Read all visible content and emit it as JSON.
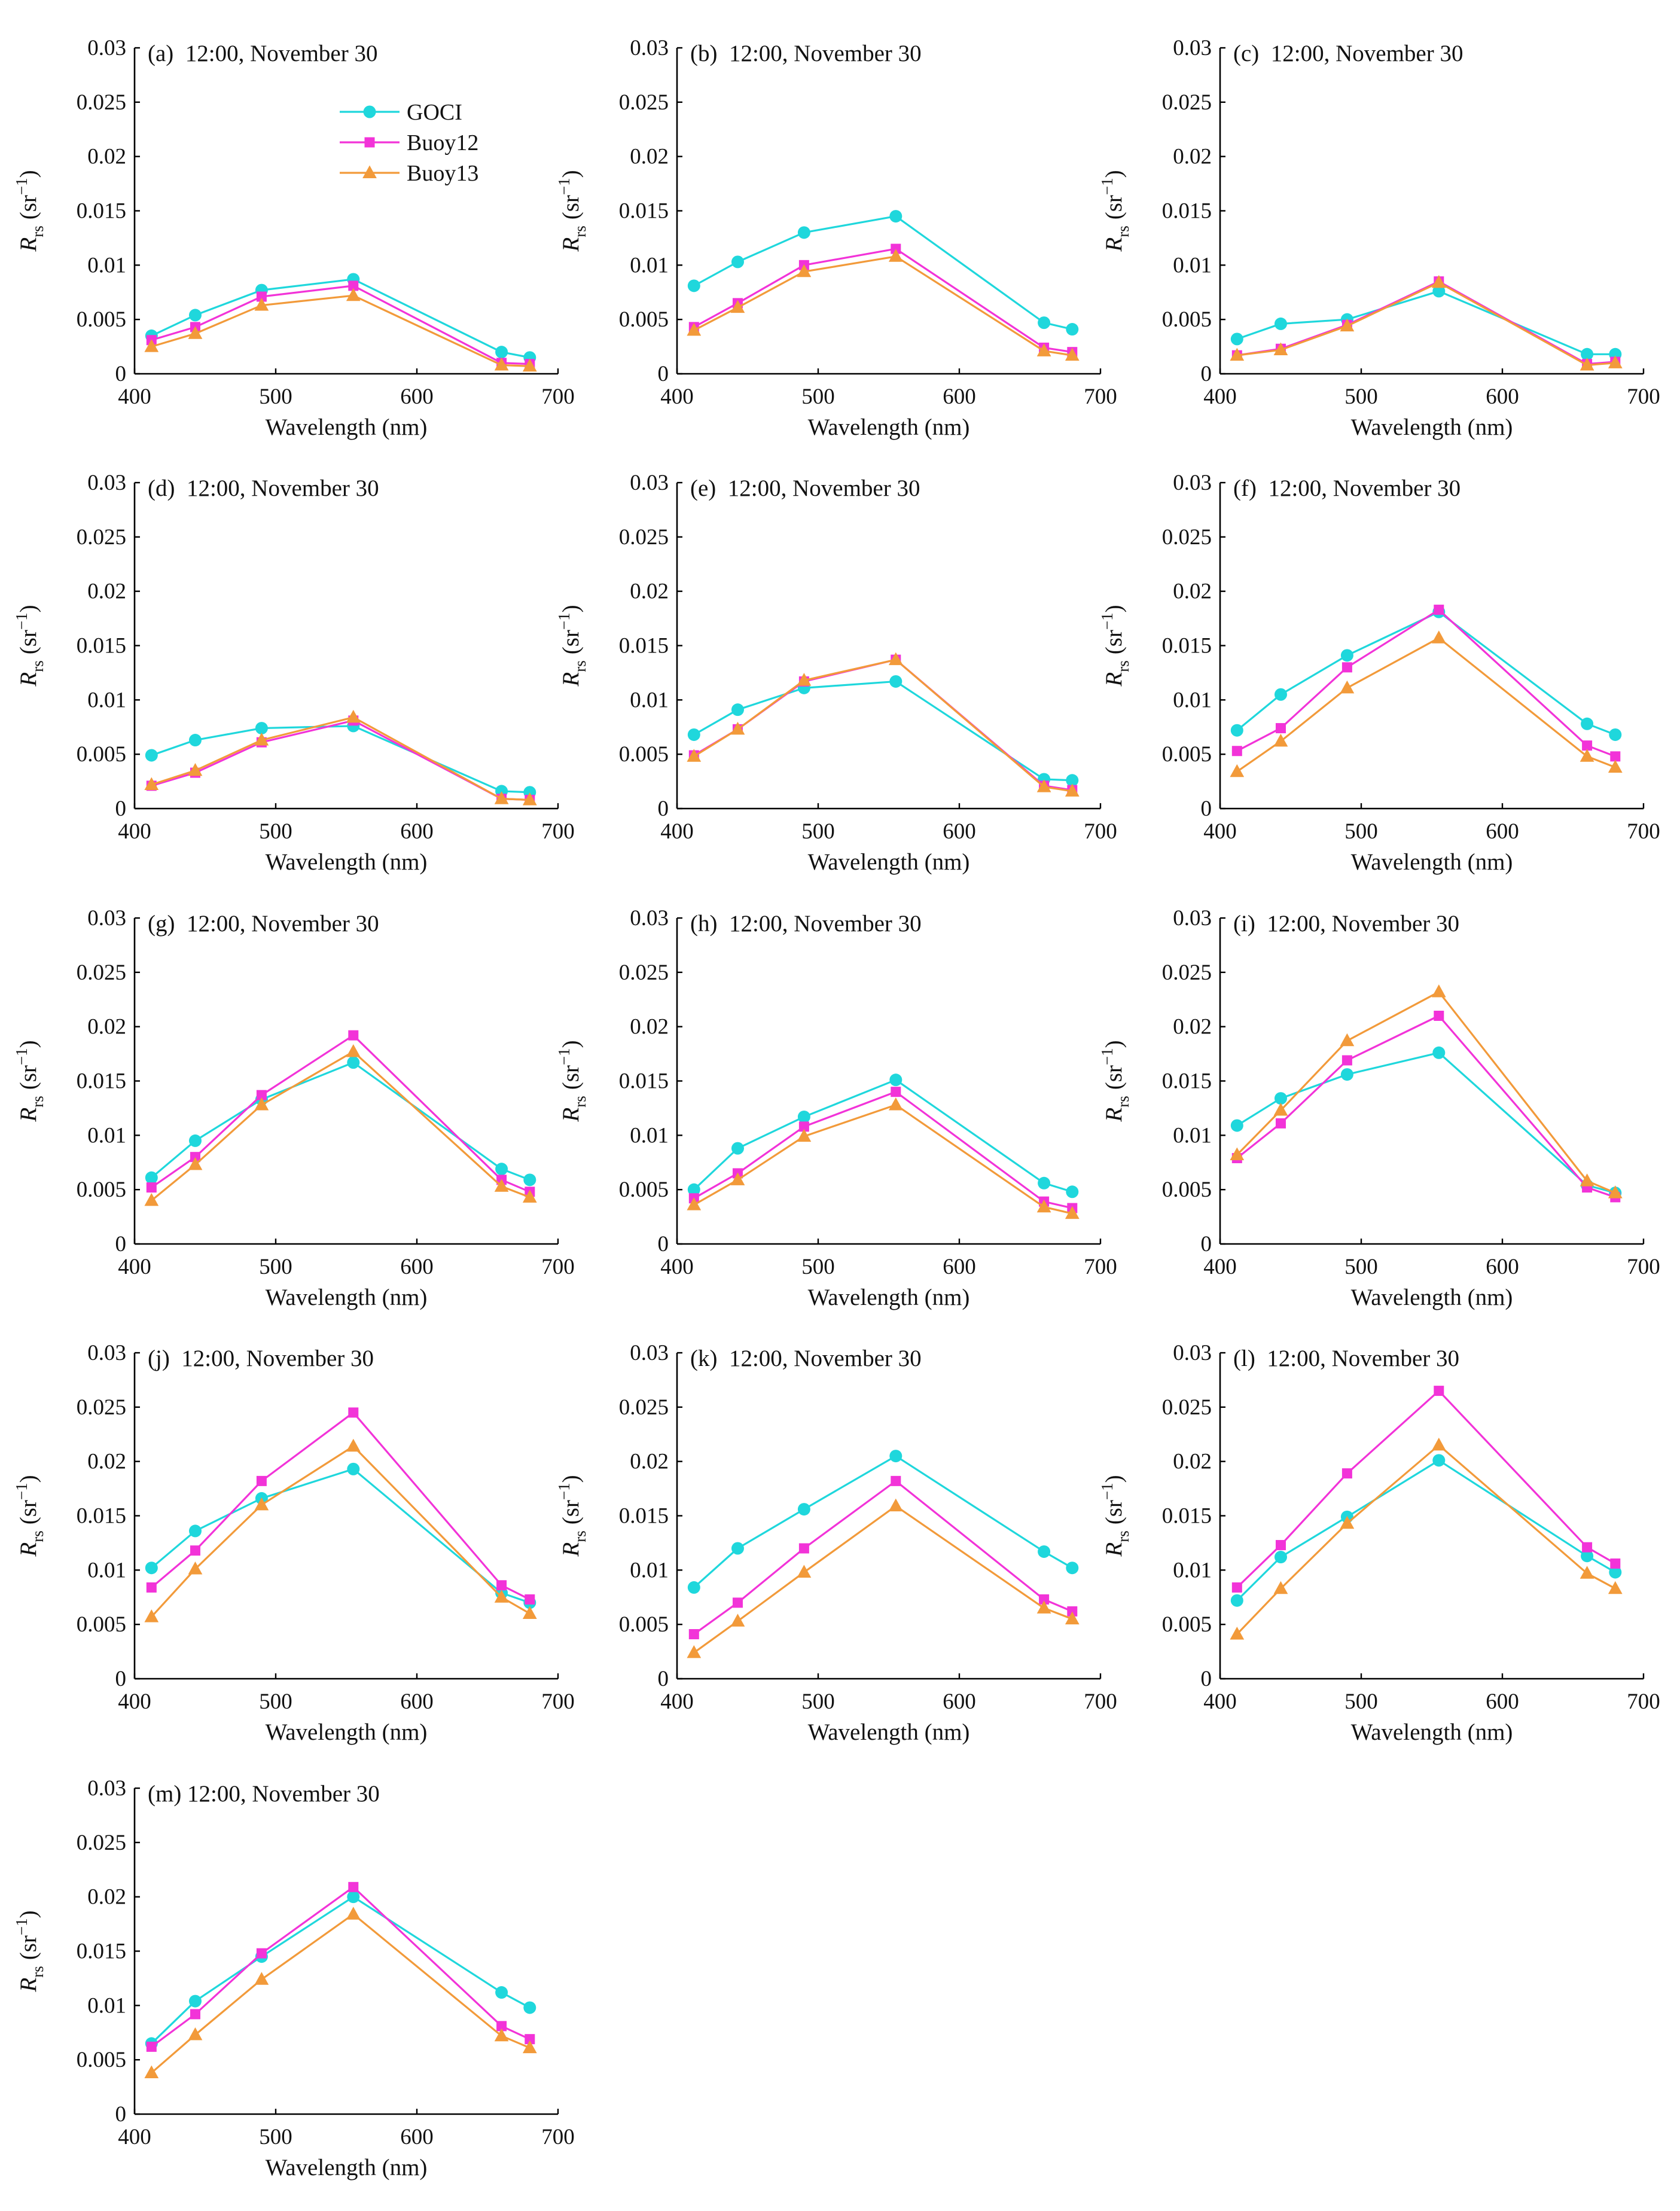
{
  "figure": {
    "xlabel": "Wavelength (nm)",
    "ylabel_main": "R",
    "ylabel_sub": "rs",
    "ylabel_unit_open": "(sr",
    "ylabel_unit_exp": "−1",
    "ylabel_unit_close": ")"
  },
  "series_meta": [
    {
      "name": "GOCI",
      "color": "#1fd7dc",
      "marker": "circle"
    },
    {
      "name": "Buoy12",
      "color": "#f233d8",
      "marker": "square"
    },
    {
      "name": "Buoy13",
      "color": "#f29a3a",
      "marker": "triangle"
    }
  ],
  "chart_data": [
    {
      "type": "line",
      "title": "(a)  12:00, November 30",
      "xlabel": "Wavelength (nm)",
      "ylabel": "Rrs (sr−1)",
      "x": [
        412,
        443,
        490,
        555,
        660,
        680
      ],
      "xlim": [
        400,
        700
      ],
      "ylim": [
        0,
        0.03
      ],
      "xticks": [
        "400",
        "500",
        "600",
        "700"
      ],
      "yticks": [
        "0",
        "0.005",
        "0.01",
        "0.015",
        "0.02",
        "0.025",
        "0.03"
      ],
      "legend": [
        "GOCI",
        "Buoy12",
        "Buoy13"
      ],
      "series": [
        {
          "name": "GOCI",
          "values": [
            0.0035,
            0.0054,
            0.0077,
            0.0087,
            0.002,
            0.0015
          ]
        },
        {
          "name": "Buoy12",
          "values": [
            0.0031,
            0.0043,
            0.0071,
            0.0081,
            0.001,
            0.0009
          ]
        },
        {
          "name": "Buoy13",
          "values": [
            0.0025,
            0.0037,
            0.0063,
            0.0072,
            0.0008,
            0.0007
          ]
        }
      ]
    },
    {
      "type": "line",
      "title": "(b)  12:00, November 30",
      "xlabel": "Wavelength (nm)",
      "ylabel": "Rrs (sr−1)",
      "x": [
        412,
        443,
        490,
        555,
        660,
        680
      ],
      "xlim": [
        400,
        700
      ],
      "ylim": [
        0,
        0.03
      ],
      "xticks": [
        "400",
        "500",
        "600",
        "700"
      ],
      "yticks": [
        "0",
        "0.005",
        "0.01",
        "0.015",
        "0.02",
        "0.025",
        "0.03"
      ],
      "series": [
        {
          "name": "GOCI",
          "values": [
            0.0081,
            0.0103,
            0.013,
            0.0145,
            0.0047,
            0.0041
          ]
        },
        {
          "name": "Buoy12",
          "values": [
            0.0043,
            0.0065,
            0.01,
            0.0115,
            0.0024,
            0.002
          ]
        },
        {
          "name": "Buoy13",
          "values": [
            0.004,
            0.0061,
            0.0094,
            0.0108,
            0.0021,
            0.0017
          ]
        }
      ]
    },
    {
      "type": "line",
      "title": "(c)  12:00, November 30",
      "xlabel": "Wavelength (nm)",
      "ylabel": "Rrs (sr−1)",
      "x": [
        412,
        443,
        490,
        555,
        660,
        680
      ],
      "xlim": [
        400,
        700
      ],
      "ylim": [
        0,
        0.03
      ],
      "xticks": [
        "400",
        "500",
        "600",
        "700"
      ],
      "yticks": [
        "0",
        "0.005",
        "0.01",
        "0.015",
        "0.02",
        "0.025",
        "0.03"
      ],
      "series": [
        {
          "name": "GOCI",
          "values": [
            0.0032,
            0.0046,
            0.005,
            0.0076,
            0.0018,
            0.0018
          ]
        },
        {
          "name": "Buoy12",
          "values": [
            0.0017,
            0.0023,
            0.0045,
            0.0085,
            0.0009,
            0.0011
          ]
        },
        {
          "name": "Buoy13",
          "values": [
            0.0017,
            0.0022,
            0.0044,
            0.0084,
            0.0008,
            0.001
          ]
        }
      ]
    },
    {
      "type": "line",
      "title": "(d)  12:00, November 30",
      "xlabel": "Wavelength (nm)",
      "ylabel": "Rrs (sr−1)",
      "x": [
        412,
        443,
        490,
        555,
        660,
        680
      ],
      "xlim": [
        400,
        700
      ],
      "ylim": [
        0,
        0.03
      ],
      "xticks": [
        "400",
        "500",
        "600",
        "700"
      ],
      "yticks": [
        "0",
        "0.005",
        "0.01",
        "0.015",
        "0.02",
        "0.025",
        "0.03"
      ],
      "series": [
        {
          "name": "GOCI",
          "values": [
            0.0049,
            0.0063,
            0.0074,
            0.0076,
            0.0016,
            0.0015
          ]
        },
        {
          "name": "Buoy12",
          "values": [
            0.0021,
            0.0033,
            0.0061,
            0.0081,
            0.0009,
            0.0008
          ]
        },
        {
          "name": "Buoy13",
          "values": [
            0.0022,
            0.0035,
            0.0063,
            0.0084,
            0.0009,
            0.0008
          ]
        }
      ]
    },
    {
      "type": "line",
      "title": "(e)  12:00, November 30",
      "xlabel": "Wavelength (nm)",
      "ylabel": "Rrs (sr−1)",
      "x": [
        412,
        443,
        490,
        555,
        660,
        680
      ],
      "xlim": [
        400,
        700
      ],
      "ylim": [
        0,
        0.03
      ],
      "xticks": [
        "400",
        "500",
        "600",
        "700"
      ],
      "yticks": [
        "0",
        "0.005",
        "0.01",
        "0.015",
        "0.02",
        "0.025",
        "0.03"
      ],
      "series": [
        {
          "name": "GOCI",
          "values": [
            0.0068,
            0.0091,
            0.0111,
            0.0117,
            0.0027,
            0.0026
          ]
        },
        {
          "name": "Buoy12",
          "values": [
            0.0049,
            0.0073,
            0.0117,
            0.0137,
            0.0021,
            0.0017
          ]
        },
        {
          "name": "Buoy13",
          "values": [
            0.0048,
            0.0073,
            0.0118,
            0.0137,
            0.002,
            0.0016
          ]
        }
      ]
    },
    {
      "type": "line",
      "title": "(f)  12:00, November 30",
      "xlabel": "Wavelength (nm)",
      "ylabel": "Rrs (sr−1)",
      "x": [
        412,
        443,
        490,
        555,
        660,
        680
      ],
      "xlim": [
        400,
        700
      ],
      "ylim": [
        0,
        0.03
      ],
      "xticks": [
        "400",
        "500",
        "600",
        "700"
      ],
      "yticks": [
        "0",
        "0.005",
        "0.01",
        "0.015",
        "0.02",
        "0.025",
        "0.03"
      ],
      "series": [
        {
          "name": "GOCI",
          "values": [
            0.0072,
            0.0105,
            0.0141,
            0.0181,
            0.0078,
            0.0068
          ]
        },
        {
          "name": "Buoy12",
          "values": [
            0.0053,
            0.0074,
            0.013,
            0.0183,
            0.0058,
            0.0048
          ]
        },
        {
          "name": "Buoy13",
          "values": [
            0.0034,
            0.0062,
            0.0111,
            0.0157,
            0.0048,
            0.0038
          ]
        }
      ]
    },
    {
      "type": "line",
      "title": "(g)  12:00, November 30",
      "xlabel": "Wavelength (nm)",
      "ylabel": "Rrs (sr−1)",
      "x": [
        412,
        443,
        490,
        555,
        660,
        680
      ],
      "xlim": [
        400,
        700
      ],
      "ylim": [
        0,
        0.03
      ],
      "xticks": [
        "400",
        "500",
        "600",
        "700"
      ],
      "yticks": [
        "0",
        "0.005",
        "0.01",
        "0.015",
        "0.02",
        "0.025",
        "0.03"
      ],
      "series": [
        {
          "name": "GOCI",
          "values": [
            0.0061,
            0.0095,
            0.0133,
            0.0167,
            0.0069,
            0.0059
          ]
        },
        {
          "name": "Buoy12",
          "values": [
            0.0052,
            0.008,
            0.0137,
            0.0192,
            0.0059,
            0.0048
          ]
        },
        {
          "name": "Buoy13",
          "values": [
            0.004,
            0.0073,
            0.0128,
            0.0177,
            0.0053,
            0.0043
          ]
        }
      ]
    },
    {
      "type": "line",
      "title": "(h)  12:00, November 30",
      "xlabel": "Wavelength (nm)",
      "ylabel": "Rrs (sr−1)",
      "x": [
        412,
        443,
        490,
        555,
        660,
        680
      ],
      "xlim": [
        400,
        700
      ],
      "ylim": [
        0,
        0.03
      ],
      "xticks": [
        "400",
        "500",
        "600",
        "700"
      ],
      "yticks": [
        "0",
        "0.005",
        "0.01",
        "0.015",
        "0.02",
        "0.025",
        "0.03"
      ],
      "series": [
        {
          "name": "GOCI",
          "values": [
            0.005,
            0.0088,
            0.0117,
            0.0151,
            0.0056,
            0.0048
          ]
        },
        {
          "name": "Buoy12",
          "values": [
            0.0042,
            0.0065,
            0.0108,
            0.014,
            0.0039,
            0.0033
          ]
        },
        {
          "name": "Buoy13",
          "values": [
            0.0036,
            0.0059,
            0.0099,
            0.0128,
            0.0034,
            0.0028
          ]
        }
      ]
    },
    {
      "type": "line",
      "title": "(i)  12:00, November 30",
      "xlabel": "Wavelength (nm)",
      "ylabel": "Rrs (sr−1)",
      "x": [
        412,
        443,
        490,
        555,
        660,
        680
      ],
      "xlim": [
        400,
        700
      ],
      "ylim": [
        0,
        0.03
      ],
      "xticks": [
        "400",
        "500",
        "600",
        "700"
      ],
      "yticks": [
        "0",
        "0.005",
        "0.01",
        "0.015",
        "0.02",
        "0.025",
        "0.03"
      ],
      "series": [
        {
          "name": "GOCI",
          "values": [
            0.0109,
            0.0134,
            0.0156,
            0.0176,
            0.0054,
            0.0047
          ]
        },
        {
          "name": "Buoy12",
          "values": [
            0.0079,
            0.0111,
            0.0169,
            0.021,
            0.0052,
            0.0043
          ]
        },
        {
          "name": "Buoy13",
          "values": [
            0.0082,
            0.0123,
            0.0187,
            0.0232,
            0.0058,
            0.0047
          ]
        }
      ]
    },
    {
      "type": "line",
      "title": "(j)  12:00, November 30",
      "xlabel": "Wavelength (nm)",
      "ylabel": "Rrs (sr−1)",
      "x": [
        412,
        443,
        490,
        555,
        660,
        680
      ],
      "xlim": [
        400,
        700
      ],
      "ylim": [
        0,
        0.03
      ],
      "xticks": [
        "400",
        "500",
        "600",
        "700"
      ],
      "yticks": [
        "0",
        "0.005",
        "0.01",
        "0.015",
        "0.02",
        "0.025",
        "0.03"
      ],
      "series": [
        {
          "name": "GOCI",
          "values": [
            0.0102,
            0.0136,
            0.0166,
            0.0193,
            0.0079,
            0.007
          ]
        },
        {
          "name": "Buoy12",
          "values": [
            0.0084,
            0.0118,
            0.0182,
            0.0245,
            0.0086,
            0.0073
          ]
        },
        {
          "name": "Buoy13",
          "values": [
            0.0057,
            0.0101,
            0.016,
            0.0214,
            0.0075,
            0.006
          ]
        }
      ]
    },
    {
      "type": "line",
      "title": "(k)  12:00, November 30",
      "xlabel": "Wavelength (nm)",
      "ylabel": "Rrs (sr−1)",
      "x": [
        412,
        443,
        490,
        555,
        660,
        680
      ],
      "xlim": [
        400,
        700
      ],
      "ylim": [
        0,
        0.03
      ],
      "xticks": [
        "400",
        "500",
        "600",
        "700"
      ],
      "yticks": [
        "0",
        "0.005",
        "0.01",
        "0.015",
        "0.02",
        "0.025",
        "0.03"
      ],
      "series": [
        {
          "name": "GOCI",
          "values": [
            0.0084,
            0.012,
            0.0156,
            0.0205,
            0.0117,
            0.0102
          ]
        },
        {
          "name": "Buoy12",
          "values": [
            0.0041,
            0.007,
            0.012,
            0.0182,
            0.0073,
            0.0062
          ]
        },
        {
          "name": "Buoy13",
          "values": [
            0.0024,
            0.0053,
            0.0098,
            0.0159,
            0.0065,
            0.0055
          ]
        }
      ]
    },
    {
      "type": "line",
      "title": "(l)  12:00, November 30",
      "xlabel": "Wavelength (nm)",
      "ylabel": "Rrs (sr−1)",
      "x": [
        412,
        443,
        490,
        555,
        660,
        680
      ],
      "xlim": [
        400,
        700
      ],
      "ylim": [
        0,
        0.03
      ],
      "xticks": [
        "400",
        "500",
        "600",
        "700"
      ],
      "yticks": [
        "0",
        "0.005",
        "0.01",
        "0.015",
        "0.02",
        "0.025",
        "0.03"
      ],
      "series": [
        {
          "name": "GOCI",
          "values": [
            0.0072,
            0.0112,
            0.0149,
            0.0201,
            0.0113,
            0.0098
          ]
        },
        {
          "name": "Buoy12",
          "values": [
            0.0084,
            0.0123,
            0.0189,
            0.0265,
            0.0121,
            0.0106
          ]
        },
        {
          "name": "Buoy13",
          "values": [
            0.0041,
            0.0083,
            0.0143,
            0.0215,
            0.0097,
            0.0083
          ]
        }
      ]
    },
    {
      "type": "line",
      "title": "(m) 12:00, November 30",
      "xlabel": "Wavelength (nm)",
      "ylabel": "Rrs (sr−1)",
      "x": [
        412,
        443,
        490,
        555,
        660,
        680
      ],
      "xlim": [
        400,
        700
      ],
      "ylim": [
        0,
        0.03
      ],
      "xticks": [
        "400",
        "500",
        "600",
        "700"
      ],
      "yticks": [
        "0",
        "0.005",
        "0.01",
        "0.015",
        "0.02",
        "0.025",
        "0.03"
      ],
      "series": [
        {
          "name": "GOCI",
          "values": [
            0.0065,
            0.0104,
            0.0145,
            0.02,
            0.0112,
            0.0098
          ]
        },
        {
          "name": "Buoy12",
          "values": [
            0.0062,
            0.0092,
            0.0148,
            0.0209,
            0.0081,
            0.0069
          ]
        },
        {
          "name": "Buoy13",
          "values": [
            0.0038,
            0.0073,
            0.0124,
            0.0184,
            0.0072,
            0.0061
          ]
        }
      ]
    }
  ]
}
